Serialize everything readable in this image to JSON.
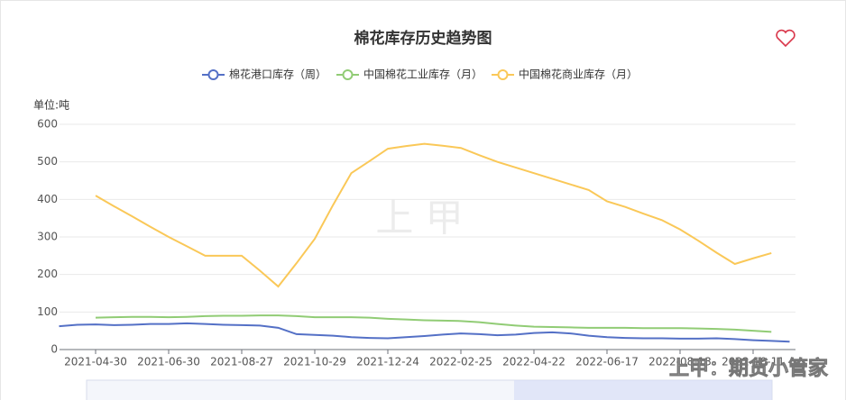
{
  "chart_data": {
    "type": "line",
    "title": "棉花库存历史趋势图",
    "unit_label": "单位:吨",
    "watermark": "上 甲",
    "corner_watermark": "上甲：期货小管家",
    "categories": [
      null,
      null,
      "2021-04-30",
      null,
      null,
      null,
      "2021-06-30",
      null,
      null,
      null,
      "2021-08-27",
      null,
      null,
      null,
      "2021-10-29",
      null,
      null,
      null,
      "2021-12-24",
      null,
      null,
      null,
      "2022-02-25",
      null,
      null,
      null,
      "2022-04-22",
      null,
      null,
      null,
      "2022-06-17",
      null,
      null,
      null,
      "2022-08-13",
      null,
      null,
      null,
      "2022-10-11",
      null,
      null
    ],
    "ylim": [
      0,
      600
    ],
    "yticks": [
      0,
      100,
      200,
      300,
      400,
      500,
      600
    ],
    "grid": true,
    "legend": "top",
    "series": [
      {
        "name": "棉花港口库存（周）",
        "color": "#5470c6",
        "values": [
          62,
          66,
          67,
          65,
          66,
          68,
          68,
          70,
          68,
          66,
          65,
          64,
          58,
          41,
          39,
          37,
          33,
          31,
          30,
          33,
          36,
          40,
          43,
          41,
          38,
          40,
          44,
          46,
          43,
          37,
          33,
          31,
          30,
          30,
          29,
          29,
          30,
          28,
          25,
          23,
          21
        ]
      },
      {
        "name": "中国棉花工业库存（月）",
        "color": "#91cc75",
        "values": [
          null,
          null,
          85,
          86,
          87,
          87,
          86,
          87,
          89,
          90,
          90,
          91,
          91,
          89,
          86,
          86,
          86,
          85,
          82,
          80,
          78,
          77,
          76,
          73,
          68,
          64,
          61,
          60,
          59,
          58,
          58,
          58,
          57,
          57,
          57,
          56,
          55,
          53,
          50,
          47,
          null
        ]
      },
      {
        "name": "中国棉花商业库存（月）",
        "color": "#fac858",
        "values": [
          null,
          null,
          410,
          382,
          355,
          327,
          300,
          275,
          250,
          250,
          250,
          210,
          168,
          230,
          295,
          385,
          470,
          502,
          535,
          542,
          548,
          543,
          537,
          518,
          500,
          485,
          470,
          455,
          440,
          425,
          395,
          380,
          362,
          345,
          320,
          290,
          258,
          228,
          243,
          257,
          null
        ]
      }
    ]
  }
}
